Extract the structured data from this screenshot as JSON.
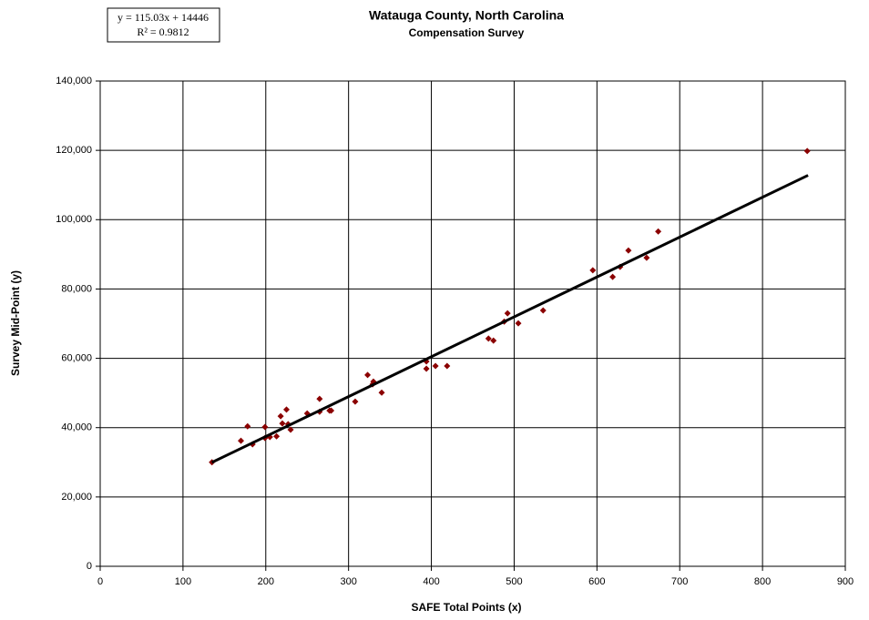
{
  "chart_data": {
    "type": "scatter",
    "title": "Watauga County, North Carolina",
    "subtitle": "Compensation Survey",
    "x_label": "SAFE Total Points (x)",
    "y_label": "Survey  Mid-Point (y)",
    "annotations": [
      "y = 115.03x + 14446",
      "R² = 0.9812"
    ],
    "x": [
      135,
      170,
      178,
      184,
      199,
      199,
      205,
      213,
      218,
      220,
      225,
      227,
      230,
      250,
      265,
      265,
      277,
      279,
      308,
      323,
      330,
      329,
      340,
      394,
      394,
      405,
      419,
      469,
      475,
      488,
      492,
      505,
      535,
      595,
      619,
      628,
      638,
      660,
      674,
      854
    ],
    "values": [
      30000,
      36200,
      40400,
      35200,
      40200,
      37000,
      37300,
      37500,
      43300,
      41200,
      45200,
      41000,
      39400,
      44100,
      48300,
      44600,
      44900,
      44900,
      47500,
      55200,
      53300,
      52500,
      50100,
      59100,
      57000,
      57800,
      57800,
      65700,
      65100,
      70600,
      73000,
      70100,
      73800,
      85400,
      83500,
      86400,
      91100,
      89000,
      96600,
      119800
    ],
    "color": "#8b0000",
    "trendline": {
      "x": [
        135,
        855
      ],
      "values": [
        29975,
        112797
      ],
      "color": "#000000"
    },
    "xlim": [
      0,
      900
    ],
    "ylim": [
      0,
      140000
    ],
    "xticks": [
      0,
      100,
      200,
      300,
      400,
      500,
      600,
      700,
      800,
      900
    ],
    "yticks": [
      0,
      {
        "value": 20000,
        "label": "20,000"
      },
      {
        "value": 40000,
        "label": "40,000"
      },
      {
        "value": 60000,
        "label": "60,000"
      },
      {
        "value": 80000,
        "label": "80,000"
      },
      {
        "value": 100000,
        "label": "100,000"
      },
      {
        "value": 120000,
        "label": "120,000"
      },
      {
        "value": 140000,
        "label": "140,000"
      }
    ],
    "grid": true
  }
}
